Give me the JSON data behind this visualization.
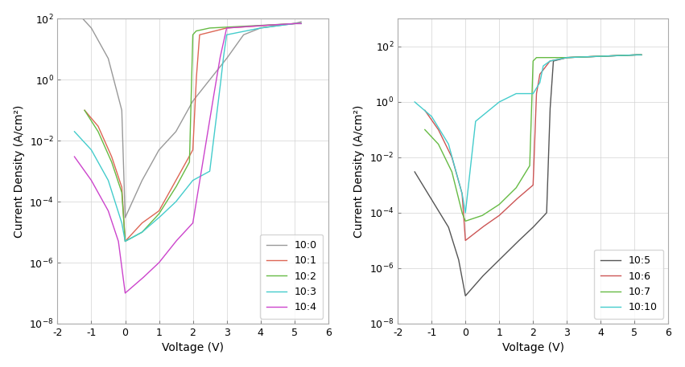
{
  "left_plot": {
    "xlabel": "Voltage (V)",
    "ylabel": "Current Density (A/cm²)",
    "xlim": [
      -2,
      6
    ],
    "ymin": 1e-08,
    "ymax": 100.0,
    "series": [
      {
        "label": "10:0",
        "color": "#999999",
        "key": "10_0"
      },
      {
        "label": "10:1",
        "color": "#dd6655",
        "key": "10_1"
      },
      {
        "label": "10:2",
        "color": "#66bb44",
        "key": "10_2"
      },
      {
        "label": "10:3",
        "color": "#44cccc",
        "key": "10_3"
      },
      {
        "label": "10:4",
        "color": "#cc44cc",
        "key": "10_4"
      }
    ]
  },
  "right_plot": {
    "xlabel": "Voltage (V)",
    "ylabel": "Current Density (A/cm²)",
    "xlim": [
      -2,
      6
    ],
    "ymin": 1e-08,
    "ymax": 1000.0,
    "series": [
      {
        "label": "10:5",
        "color": "#555555",
        "key": "10_5"
      },
      {
        "label": "10:6",
        "color": "#cc5555",
        "key": "10_6"
      },
      {
        "label": "10:7",
        "color": "#66bb44",
        "key": "10_7"
      },
      {
        "label": "10:10",
        "color": "#44cccc",
        "key": "10_10"
      }
    ]
  }
}
